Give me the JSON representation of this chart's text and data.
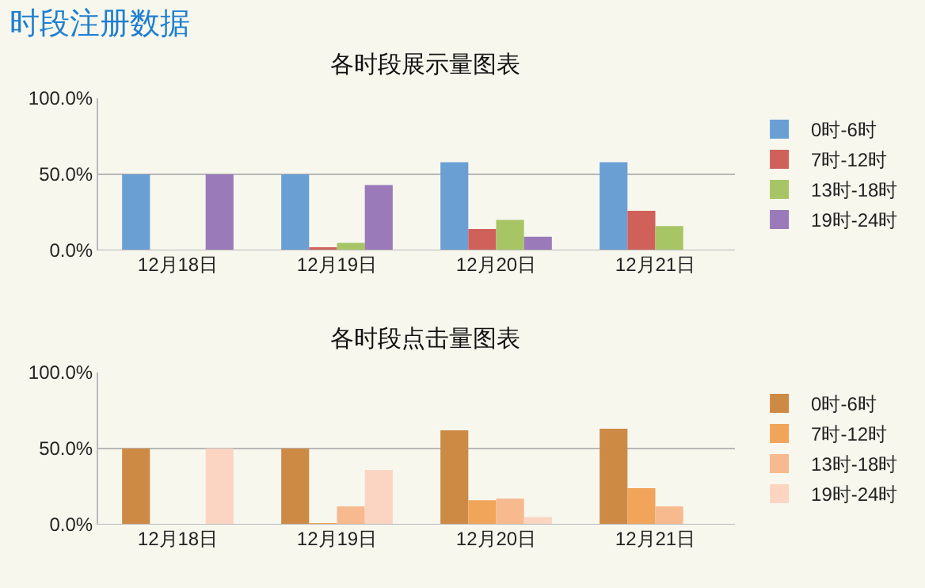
{
  "chart_data": [
    {
      "type": "bar",
      "title": "各时段展示量图表",
      "annotations": [
        "时段注册数据"
      ],
      "categories": [
        "12月18日",
        "12月19日",
        "12月20日",
        "12月21日"
      ],
      "series": [
        {
          "name": "0时-6时",
          "color": "#6a9fd4",
          "values": [
            50,
            50,
            58,
            58
          ]
        },
        {
          "name": "7时-12时",
          "color": "#d0605a",
          "values": [
            0,
            2,
            14,
            26
          ]
        },
        {
          "name": "13时-18时",
          "color": "#a7c565",
          "values": [
            0,
            5,
            20,
            16
          ]
        },
        {
          "name": "19时-24时",
          "color": "#9a7ab8",
          "values": [
            50,
            43,
            9,
            0
          ]
        }
      ],
      "ylim": [
        0,
        100
      ],
      "yticks": [
        {
          "value": 0,
          "label": "0.0%"
        },
        {
          "value": 50,
          "label": "50.0%"
        },
        {
          "value": 100,
          "label": "100.0%"
        }
      ],
      "grid": "y",
      "legend": "right"
    },
    {
      "type": "bar",
      "title": "各时段点击量图表",
      "categories": [
        "12月18日",
        "12月19日",
        "12月20日",
        "12月21日"
      ],
      "series": [
        {
          "name": "0时-6时",
          "color": "#cd8a45",
          "values": [
            50,
            50,
            62,
            63
          ]
        },
        {
          "name": "7时-12时",
          "color": "#f0a55a",
          "values": [
            0,
            1,
            16,
            24
          ]
        },
        {
          "name": "13时-18时",
          "color": "#f7b98e",
          "values": [
            0,
            12,
            17,
            12
          ]
        },
        {
          "name": "19时-24时",
          "color": "#fbd5c2",
          "values": [
            50,
            36,
            5,
            0
          ]
        }
      ],
      "ylim": [
        0,
        100
      ],
      "yticks": [
        {
          "value": 0,
          "label": "0.0%"
        },
        {
          "value": 50,
          "label": "50.0%"
        },
        {
          "value": 100,
          "label": "100.0%"
        }
      ],
      "grid": "y",
      "legend": "right"
    }
  ]
}
